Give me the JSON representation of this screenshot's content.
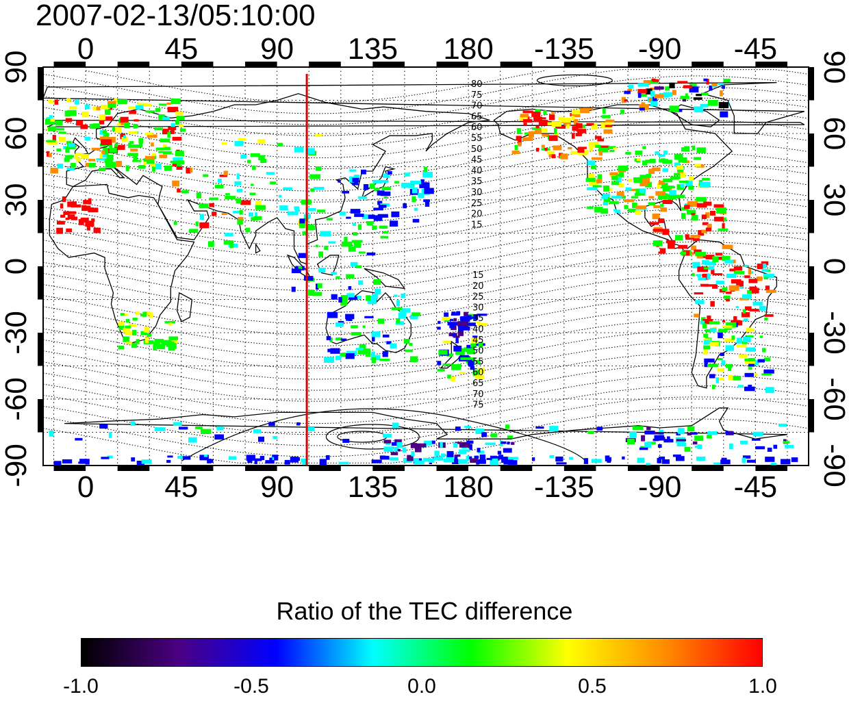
{
  "timestamp": "2007-02-13/05:10:00",
  "map": {
    "lon_ticks_top": [
      "0",
      "45",
      "90",
      "135",
      "180",
      "-135",
      "-90",
      "-45"
    ],
    "lon_ticks_bottom": [
      "0",
      "45",
      "90",
      "135",
      "180",
      "-135",
      "-90",
      "-45"
    ],
    "lat_ticks_left": [
      "90",
      "60",
      "30",
      "0",
      "-30",
      "-60",
      "-90"
    ],
    "lat_ticks_right": [
      "90",
      "60",
      "30",
      "0",
      "-30",
      "-60",
      "-90"
    ],
    "lon_range": [
      -20,
      340
    ],
    "lat_range": [
      -90,
      90
    ],
    "grid": "dotted",
    "marker_longitude": 104,
    "marker_color": "#e00000",
    "contour_labels_north": [
      "80",
      "75",
      "70",
      "65",
      "60",
      "55",
      "50",
      "45",
      "40",
      "35",
      "30",
      "25",
      "20",
      "15"
    ],
    "contour_labels_south": [
      "15",
      "20",
      "25",
      "30",
      "35",
      "40",
      "45",
      "50",
      "55",
      "60",
      "65",
      "70",
      "75"
    ]
  },
  "colorbar": {
    "title": "Ratio of the TEC difference",
    "ticks": [
      "-1.0",
      "-0.5",
      "0.0",
      "0.5",
      "1.0"
    ],
    "range": [
      -1.0,
      1.0
    ],
    "colors": [
      "#000000",
      "#4b0082",
      "#0000ff",
      "#00ffff",
      "#00ff00",
      "#ffff00",
      "#ff8c00",
      "#ff0000"
    ]
  }
}
